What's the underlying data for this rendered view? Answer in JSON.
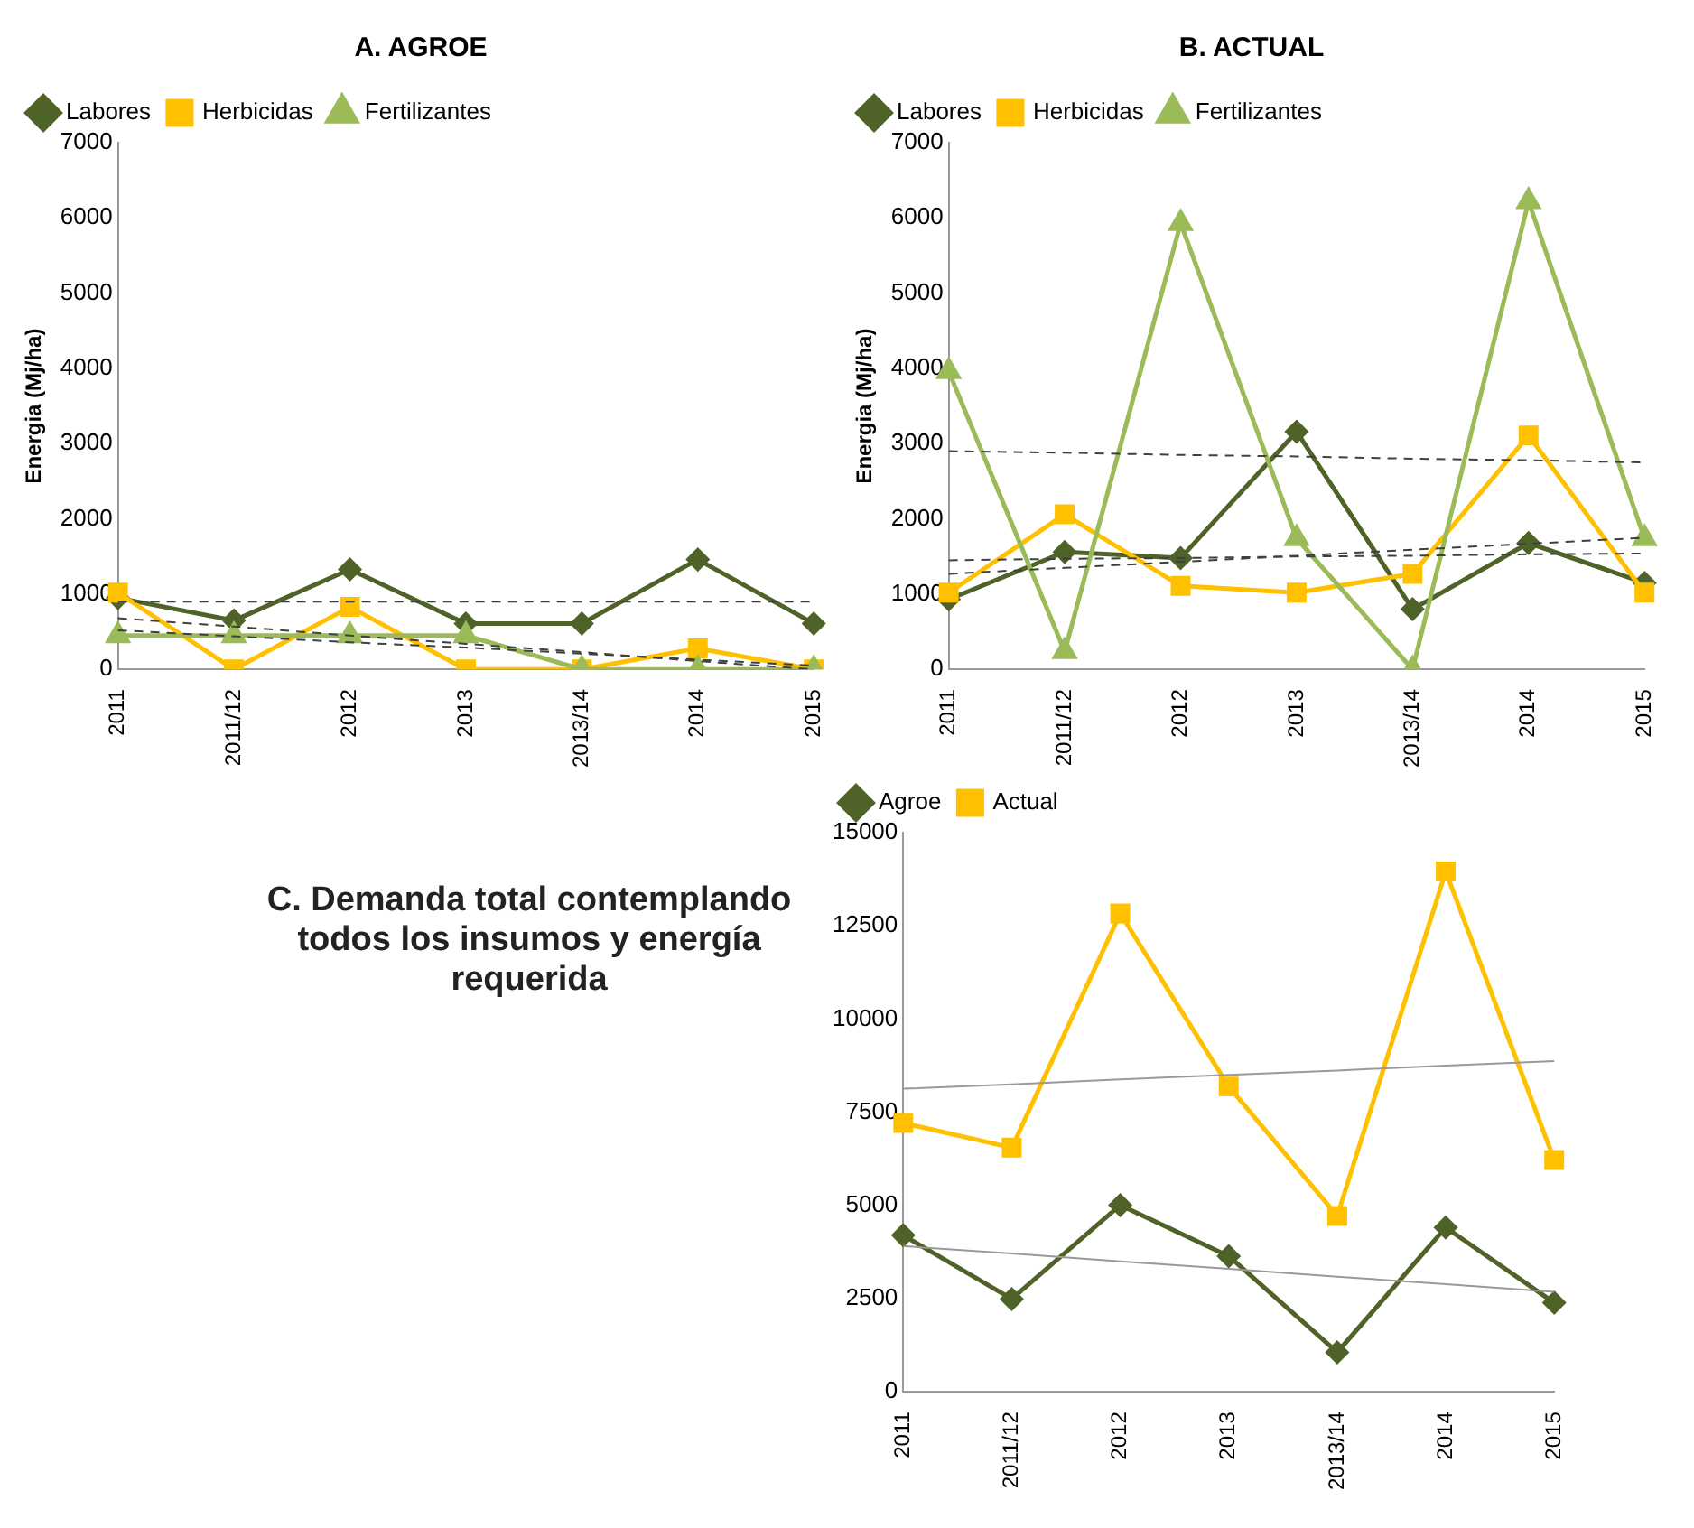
{
  "chart_data": [
    {
      "type": "line",
      "title": "A. AGROE",
      "ylabel": "Energia (Mj/ha)",
      "categories": [
        "2011",
        "2011/12",
        "2012",
        "2013",
        "2013/14",
        "2014",
        "2015"
      ],
      "ylim": [
        0,
        7000
      ],
      "yticks": [
        0,
        1000,
        2000,
        3000,
        4000,
        5000,
        6000,
        7000
      ],
      "grid": false,
      "legend": "top left",
      "series": [
        {
          "name": "Labores",
          "color": "#4f6228",
          "marker": "diamond",
          "values": [
            950,
            650,
            1330,
            610,
            610,
            1460,
            610
          ]
        },
        {
          "name": "Herbicidas",
          "color": "#ffc000",
          "marker": "square",
          "values": [
            1020,
            0,
            830,
            0,
            0,
            280,
            0
          ]
        },
        {
          "name": "Fertilizantes",
          "color": "#9bbb59",
          "marker": "triangle",
          "values": [
            450,
            450,
            450,
            450,
            0,
            0,
            0
          ]
        },
        {
          "type": "line",
          "color": "#404040",
          "marker": "none",
          "line_style": "dashed",
          "values": [
            900,
            900,
            900,
            900,
            900,
            900,
            900
          ]
        },
        {
          "type": "line",
          "color": "#404040",
          "marker": "none",
          "line_style": "dashed",
          "values": [
            680,
            570,
            450,
            340,
            230,
            110,
            0
          ]
        },
        {
          "type": "line",
          "color": "#404040",
          "marker": "none",
          "line_style": "dashed",
          "values": [
            520,
            440,
            360,
            290,
            210,
            130,
            50
          ]
        }
      ]
    },
    {
      "type": "line",
      "title": "B. ACTUAL",
      "ylabel": "Energia (Mj/ha)",
      "categories": [
        "2011",
        "2011/12",
        "2012",
        "2013",
        "2013/14",
        "2014",
        "2015"
      ],
      "ylim": [
        0,
        7000
      ],
      "yticks": [
        0,
        1000,
        2000,
        3000,
        4000,
        5000,
        6000,
        7000
      ],
      "grid": false,
      "legend": "top left",
      "series": [
        {
          "name": "Labores",
          "color": "#4f6228",
          "marker": "diamond",
          "values": [
            930,
            1560,
            1480,
            3160,
            800,
            1680,
            1150
          ]
        },
        {
          "name": "Herbicidas",
          "color": "#ffc000",
          "marker": "square",
          "values": [
            1020,
            2060,
            1110,
            1020,
            1270,
            3110,
            1020
          ]
        },
        {
          "name": "Fertilizantes",
          "color": "#9bbb59",
          "marker": "triangle",
          "values": [
            3960,
            240,
            5930,
            1740,
            0,
            6220,
            1740
          ]
        },
        {
          "type": "line",
          "color": "#404040",
          "marker": "none",
          "line_style": "dashed",
          "values": [
            2900,
            2880,
            2850,
            2830,
            2800,
            2780,
            2750
          ]
        },
        {
          "type": "line",
          "color": "#404040",
          "marker": "none",
          "line_style": "dashed",
          "values": [
            1270,
            1350,
            1430,
            1510,
            1590,
            1670,
            1750
          ]
        },
        {
          "type": "line",
          "color": "#404040",
          "marker": "none",
          "line_style": "dashed",
          "values": [
            1450,
            1470,
            1480,
            1500,
            1510,
            1530,
            1540
          ]
        }
      ]
    },
    {
      "type": "line",
      "title": "C. Demanda total contemplando todos los insumos y energía requerida",
      "categories": [
        "2011",
        "2011/12",
        "2012",
        "2013",
        "2013/14",
        "2014",
        "2015"
      ],
      "ylim": [
        0,
        15000
      ],
      "yticks": [
        0,
        2500,
        5000,
        7500,
        10000,
        12500,
        15000
      ],
      "grid": false,
      "legend": "top left",
      "series": [
        {
          "name": "Agroe",
          "color": "#4f6228",
          "marker": "diamond",
          "values": [
            4200,
            2490,
            5010,
            3640,
            1060,
            4410,
            2390
          ]
        },
        {
          "name": "Actual",
          "color": "#ffc000",
          "marker": "square",
          "values": [
            7210,
            6550,
            12830,
            8190,
            4720,
            13960,
            6220
          ]
        },
        {
          "type": "line",
          "color": "#999999",
          "marker": "none",
          "line_style": "solid",
          "values": [
            8130,
            8250,
            8380,
            8500,
            8620,
            8750,
            8870
          ]
        },
        {
          "type": "line",
          "color": "#999999",
          "marker": "none",
          "line_style": "solid",
          "values": [
            3910,
            3710,
            3500,
            3300,
            3090,
            2890,
            2680
          ]
        }
      ]
    }
  ]
}
